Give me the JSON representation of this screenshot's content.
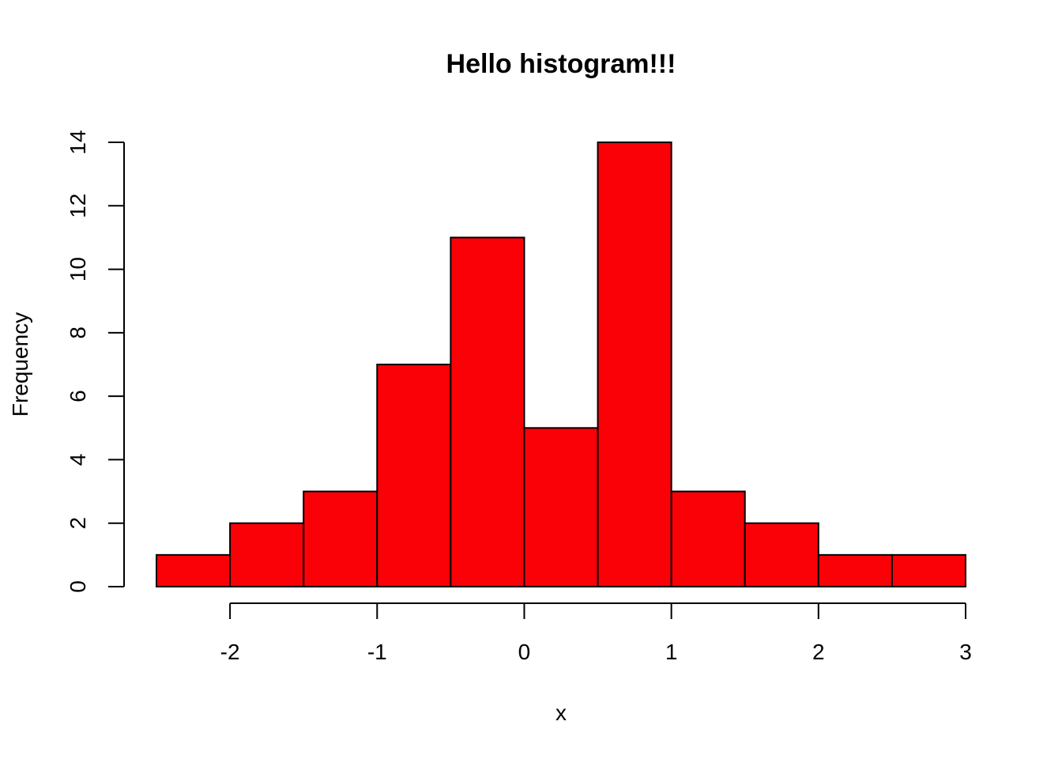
{
  "chart_data": {
    "type": "bar",
    "title": "Hello histogram!!!",
    "xlabel": "x",
    "ylabel": "Frequency",
    "bar_color": "#fa0007",
    "bins": [
      {
        "start": -2.5,
        "end": -2.0,
        "count": 1
      },
      {
        "start": -2.0,
        "end": -1.5,
        "count": 2
      },
      {
        "start": -1.5,
        "end": -1.0,
        "count": 3
      },
      {
        "start": -1.0,
        "end": -0.5,
        "count": 7
      },
      {
        "start": -0.5,
        "end": 0.0,
        "count": 11
      },
      {
        "start": 0.0,
        "end": 0.5,
        "count": 5
      },
      {
        "start": 0.5,
        "end": 1.0,
        "count": 14
      },
      {
        "start": 1.0,
        "end": 1.5,
        "count": 3
      },
      {
        "start": 1.5,
        "end": 2.0,
        "count": 2
      },
      {
        "start": 2.0,
        "end": 2.5,
        "count": 1
      },
      {
        "start": 2.5,
        "end": 3.0,
        "count": 1
      }
    ],
    "x_ticks": [
      -2,
      -1,
      0,
      1,
      2,
      3
    ],
    "y_ticks": [
      0,
      2,
      4,
      6,
      8,
      10,
      12,
      14
    ],
    "xlim": [
      -2.5,
      3
    ],
    "ylim": [
      0,
      14
    ],
    "grid": false
  }
}
